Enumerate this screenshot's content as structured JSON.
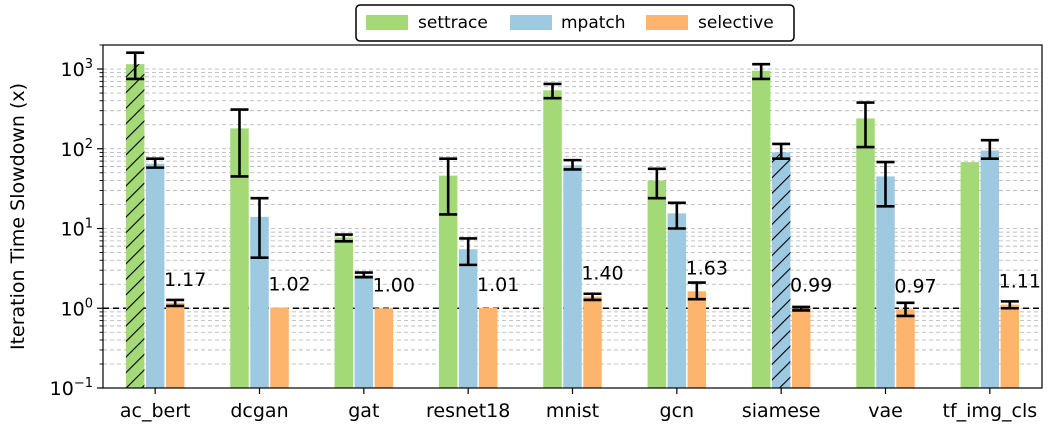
{
  "chart_data": {
    "type": "bar",
    "title": "",
    "xlabel": "",
    "ylabel": "Iteration Time Slowdown (x)",
    "yscale": "log",
    "ylim": [
      0.1,
      2000
    ],
    "y_ticks": [
      {
        "value": 0.1,
        "base": "10",
        "exp": "−1"
      },
      {
        "value": 1,
        "base": "10",
        "exp": "0"
      },
      {
        "value": 10,
        "base": "10",
        "exp": "1"
      },
      {
        "value": 100,
        "base": "10",
        "exp": "2"
      },
      {
        "value": 1000,
        "base": "10",
        "exp": "3"
      }
    ],
    "grid": "horizontal dashed (major and minor)",
    "legend": "top-center",
    "reference_line": 1.0,
    "categories": [
      "ac_bert",
      "dcgan",
      "gat",
      "resnet18",
      "mnist",
      "gcn",
      "siamese",
      "vae",
      "tf_img_cls"
    ],
    "series": [
      {
        "name": "settrace",
        "color": "#a3d977",
        "values": [
          1150,
          180,
          7.7,
          46,
          540,
          40,
          950,
          240,
          68
        ],
        "err_low": [
          750,
          45,
          6.9,
          15,
          430,
          24,
          750,
          105,
          null
        ],
        "err_high": [
          1600,
          310,
          8.4,
          75,
          650,
          56,
          1150,
          380,
          null
        ],
        "hatched": [
          true,
          false,
          false,
          false,
          false,
          false,
          false,
          false,
          false
        ]
      },
      {
        "name": "mpatch",
        "color": "#9ecae1",
        "values": [
          65,
          14,
          2.6,
          5.5,
          62,
          15.5,
          90,
          45,
          95
        ],
        "err_low": [
          58,
          4.3,
          2.45,
          3.5,
          55,
          10,
          75,
          19,
          75
        ],
        "err_high": [
          75,
          24,
          2.8,
          7.5,
          72,
          21,
          115,
          68,
          128
        ],
        "hatched": [
          false,
          false,
          false,
          false,
          false,
          false,
          true,
          false,
          false
        ]
      },
      {
        "name": "selective",
        "color": "#fdb46c",
        "values": [
          1.17,
          1.02,
          1.0,
          1.01,
          1.4,
          1.63,
          0.99,
          0.97,
          1.11
        ],
        "labels": [
          "1.17",
          "1.02",
          "1.00",
          "1.01",
          "1.40",
          "1.63",
          "0.99",
          "0.97",
          "1.11"
        ],
        "err_low": [
          1.07,
          null,
          null,
          null,
          1.27,
          1.3,
          0.94,
          0.8,
          1.0
        ],
        "err_high": [
          1.27,
          null,
          null,
          null,
          1.52,
          2.1,
          1.04,
          1.17,
          1.22
        ],
        "hatched": [
          false,
          false,
          false,
          false,
          false,
          false,
          false,
          false,
          false
        ]
      }
    ]
  }
}
